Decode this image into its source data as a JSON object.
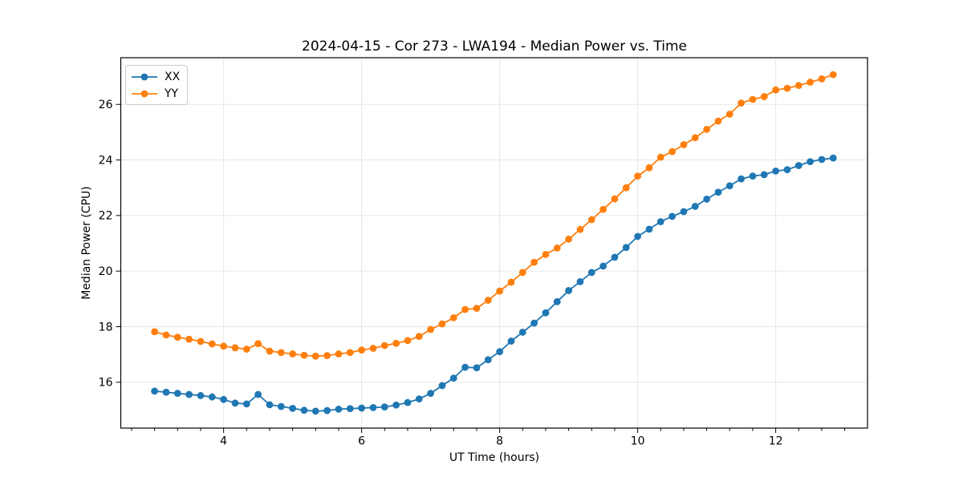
{
  "figure": {
    "title": "2024-04-15 - Cor 273 - LWA194 - Median Power vs. Time",
    "xlabel": "UT Time (hours)",
    "ylabel": "Median Power (CPU)"
  },
  "legend": {
    "position": "upper left",
    "items": [
      {
        "label": "XX",
        "color": "#1f77b4"
      },
      {
        "label": "YY",
        "color": "#ff7f0e"
      }
    ]
  },
  "colors": {
    "series_xx": "#1f77b4",
    "series_yy": "#ff7f0e",
    "grid": "#e6e6e6",
    "spine": "#000000",
    "background": "#ffffff"
  },
  "chart_data": {
    "type": "line",
    "title": "2024-04-15 - Cor 273 - LWA194 - Median Power vs. Time",
    "xlabel": "UT Time (hours)",
    "ylabel": "Median Power (CPU)",
    "marker": "circle",
    "grid": true,
    "legend_position": "upper left",
    "xlim": [
      2.51,
      13.33
    ],
    "ylim": [
      14.35,
      27.68
    ],
    "xticks": [
      4,
      6,
      8,
      10,
      12
    ],
    "yticks": [
      16,
      18,
      20,
      22,
      24,
      26
    ],
    "x_minor_divisions": 6,
    "x": [
      3.0,
      3.167,
      3.333,
      3.5,
      3.667,
      3.833,
      4.0,
      4.167,
      4.333,
      4.5,
      4.667,
      4.833,
      5.0,
      5.167,
      5.333,
      5.5,
      5.667,
      5.833,
      6.0,
      6.167,
      6.333,
      6.5,
      6.667,
      6.833,
      7.0,
      7.167,
      7.333,
      7.5,
      7.667,
      7.833,
      8.0,
      8.167,
      8.333,
      8.5,
      8.667,
      8.833,
      9.0,
      9.167,
      9.333,
      9.5,
      9.667,
      9.833,
      10.0,
      10.167,
      10.333,
      10.5,
      10.667,
      10.833,
      11.0,
      11.167,
      11.333,
      11.5,
      11.667,
      11.833,
      12.0,
      12.167,
      12.333,
      12.5,
      12.667,
      12.833
    ],
    "series": [
      {
        "name": "XX",
        "color": "#1f77b4",
        "values": [
          15.68,
          15.64,
          15.6,
          15.56,
          15.52,
          15.47,
          15.38,
          15.25,
          15.22,
          15.56,
          15.19,
          15.13,
          15.06,
          14.99,
          14.96,
          14.98,
          15.03,
          15.05,
          15.07,
          15.09,
          15.11,
          15.18,
          15.27,
          15.4,
          15.6,
          15.88,
          16.15,
          16.54,
          16.52,
          16.81,
          17.1,
          17.48,
          17.8,
          18.13,
          18.5,
          18.9,
          19.3,
          19.62,
          19.95,
          20.18,
          20.5,
          20.85,
          21.25,
          21.51,
          21.78,
          21.97,
          22.14,
          22.33,
          22.59,
          22.84,
          23.07,
          23.32,
          23.42,
          23.47,
          23.6,
          23.65,
          23.8,
          23.94,
          24.02,
          24.07
        ]
      },
      {
        "name": "YY",
        "color": "#ff7f0e",
        "values": [
          17.82,
          17.7,
          17.62,
          17.55,
          17.47,
          17.38,
          17.3,
          17.24,
          17.19,
          17.39,
          17.12,
          17.07,
          17.02,
          16.97,
          16.94,
          16.96,
          17.02,
          17.07,
          17.16,
          17.22,
          17.32,
          17.4,
          17.5,
          17.65,
          17.9,
          18.1,
          18.32,
          18.62,
          18.66,
          18.95,
          19.28,
          19.6,
          19.95,
          20.32,
          20.6,
          20.83,
          21.15,
          21.5,
          21.85,
          22.22,
          22.6,
          23.0,
          23.42,
          23.72,
          24.1,
          24.3,
          24.55,
          24.8,
          25.1,
          25.4,
          25.65,
          26.05,
          26.18,
          26.28,
          26.52,
          26.58,
          26.68,
          26.8,
          26.92,
          27.07
        ]
      }
    ]
  }
}
